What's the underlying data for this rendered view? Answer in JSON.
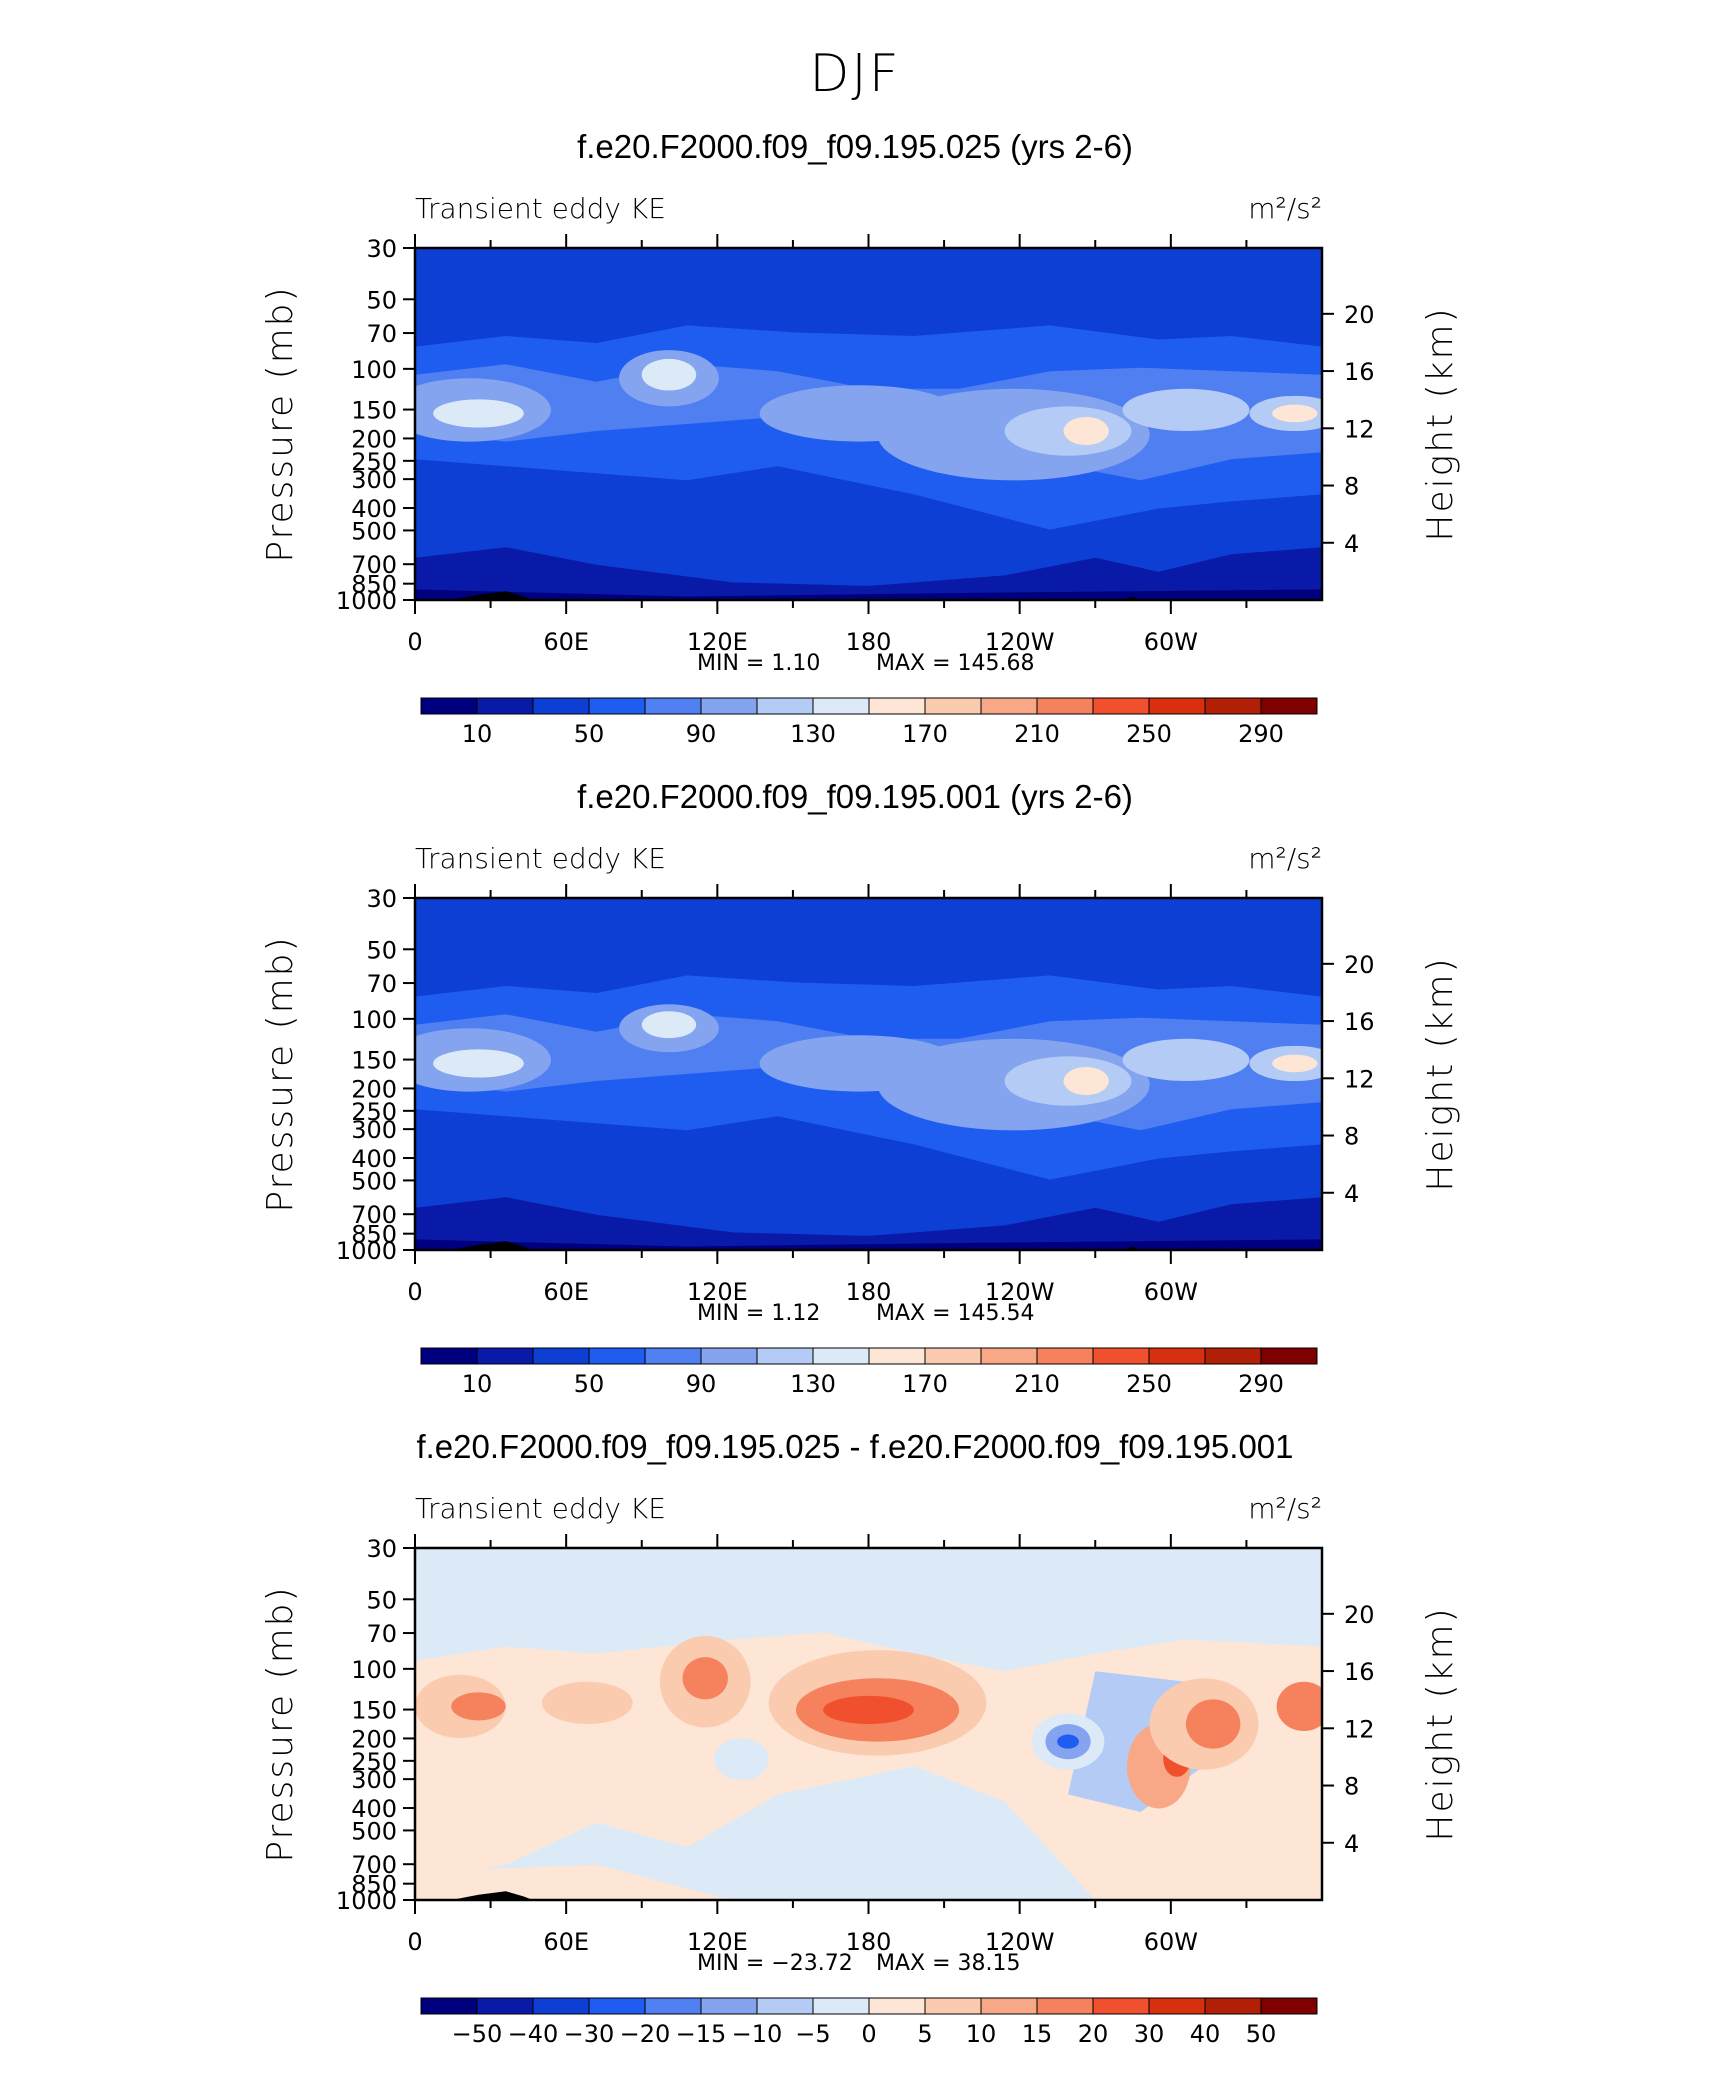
{
  "main_title": "DJF",
  "chart_data": [
    {
      "type": "heatmap",
      "title": "f.e20.F2000.f09_f09.195.025 (yrs 2-6)",
      "left_label": "Transient eddy KE",
      "units": "m²/s²",
      "ylabel": "Pressure (mb)",
      "y2label": "Height (km)",
      "yticks": [
        "30",
        "50",
        "70",
        "100",
        "150",
        "200",
        "250",
        "300",
        "400",
        "500",
        "700",
        "850",
        "1000"
      ],
      "y2ticks": [
        "20",
        "16",
        "12",
        "8",
        "4"
      ],
      "xticks": [
        "0",
        "60E",
        "120E",
        "180",
        "120W",
        "60W"
      ],
      "stats": {
        "min": "1.10",
        "max": "145.68"
      },
      "colorbar": {
        "labels": [
          "10",
          "50",
          "90",
          "130",
          "170",
          "210",
          "250",
          "290"
        ],
        "colors": [
          "#00007f",
          "#0a1aa8",
          "#0d3fd4",
          "#1f5cf0",
          "#4f7ff0",
          "#84a4f0",
          "#b4ccf5",
          "#dceaf8",
          "#fde6d6",
          "#fbcbb0",
          "#f8a886",
          "#f5815d",
          "#f0502e",
          "#d8300f",
          "#b01f06",
          "#7f0000"
        ]
      }
    },
    {
      "type": "heatmap",
      "title": "f.e20.F2000.f09_f09.195.001 (yrs 2-6)",
      "left_label": "Transient eddy KE",
      "units": "m²/s²",
      "ylabel": "Pressure (mb)",
      "y2label": "Height (km)",
      "yticks": [
        "30",
        "50",
        "70",
        "100",
        "150",
        "200",
        "250",
        "300",
        "400",
        "500",
        "700",
        "850",
        "1000"
      ],
      "y2ticks": [
        "20",
        "16",
        "12",
        "8",
        "4"
      ],
      "xticks": [
        "0",
        "60E",
        "120E",
        "180",
        "120W",
        "60W"
      ],
      "stats": {
        "min": "1.12",
        "max": "145.54"
      },
      "colorbar": {
        "labels": [
          "10",
          "50",
          "90",
          "130",
          "170",
          "210",
          "250",
          "290"
        ],
        "colors": [
          "#00007f",
          "#0a1aa8",
          "#0d3fd4",
          "#1f5cf0",
          "#4f7ff0",
          "#84a4f0",
          "#b4ccf5",
          "#dceaf8",
          "#fde6d6",
          "#fbcbb0",
          "#f8a886",
          "#f5815d",
          "#f0502e",
          "#d8300f",
          "#b01f06",
          "#7f0000"
        ]
      }
    },
    {
      "type": "heatmap",
      "title": "f.e20.F2000.f09_f09.195.025 - f.e20.F2000.f09_f09.195.001",
      "left_label": "Transient eddy KE",
      "units": "m²/s²",
      "ylabel": "Pressure (mb)",
      "y2label": "Height (km)",
      "yticks": [
        "30",
        "50",
        "70",
        "100",
        "150",
        "200",
        "250",
        "300",
        "400",
        "500",
        "700",
        "850",
        "1000"
      ],
      "y2ticks": [
        "20",
        "16",
        "12",
        "8",
        "4"
      ],
      "xticks": [
        "0",
        "60E",
        "120E",
        "180",
        "120W",
        "60W"
      ],
      "stats": {
        "min": "−23.72",
        "max": "38.15"
      },
      "colorbar": {
        "labels": [
          "−50",
          "−40",
          "−30",
          "−20",
          "−15",
          "−10",
          "−5",
          "0",
          "5",
          "10",
          "15",
          "20",
          "30",
          "40",
          "50"
        ],
        "colors": [
          "#00007f",
          "#0a1aa8",
          "#0d3fd4",
          "#1f5cf0",
          "#4f7ff0",
          "#84a4f0",
          "#b4ccf5",
          "#dceaf8",
          "#fde6d6",
          "#fbcbb0",
          "#f8a886",
          "#f5815d",
          "#f0502e",
          "#d8300f",
          "#b01f06",
          "#7f0000"
        ]
      }
    }
  ]
}
